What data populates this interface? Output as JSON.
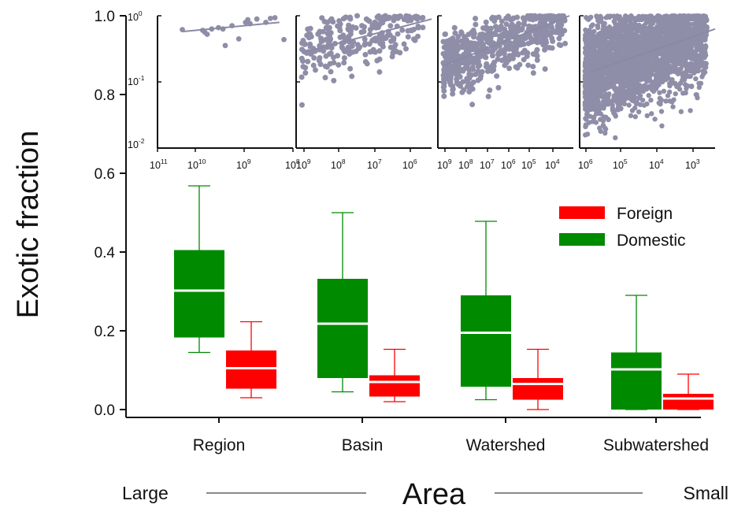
{
  "chart_data": [
    {
      "type": "box",
      "ylabel": "Exotic fraction",
      "xlabel": "Area",
      "x_scale_left_label": "Large",
      "x_scale_right_label": "Small",
      "ylim": [
        0,
        1.0
      ],
      "yticks": [
        "0.0",
        "0.2",
        "0.4",
        "0.6",
        "0.8",
        "1.0"
      ],
      "categories": [
        "Region",
        "Basin",
        "Watershed",
        "Subwatershed"
      ],
      "legend": {
        "placement": "right",
        "entries": [
          "Foreign",
          "Domestic"
        ]
      },
      "series": [
        {
          "name": "Domestic",
          "color": "#008a00",
          "boxes": [
            {
              "whisker_low": 0.145,
              "q1": 0.183,
              "median": 0.302,
              "q3": 0.405,
              "whisker_high": 0.568
            },
            {
              "whisker_low": 0.045,
              "q1": 0.08,
              "median": 0.218,
              "q3": 0.332,
              "whisker_high": 0.5
            },
            {
              "whisker_low": 0.025,
              "q1": 0.058,
              "median": 0.195,
              "q3": 0.29,
              "whisker_high": 0.478
            },
            {
              "whisker_low": 0.0,
              "q1": 0.0,
              "median": 0.102,
              "q3": 0.145,
              "whisker_high": 0.29
            }
          ]
        },
        {
          "name": "Foreign",
          "color": "#ff0000",
          "boxes": [
            {
              "whisker_low": 0.03,
              "q1": 0.053,
              "median": 0.105,
              "q3": 0.15,
              "whisker_high": 0.223
            },
            {
              "whisker_low": 0.02,
              "q1": 0.033,
              "median": 0.07,
              "q3": 0.087,
              "whisker_high": 0.153
            },
            {
              "whisker_low": 0.0,
              "q1": 0.025,
              "median": 0.065,
              "q3": 0.08,
              "whisker_high": 0.153
            },
            {
              "whisker_low": 0.0,
              "q1": 0.0,
              "median": 0.028,
              "q3": 0.04,
              "whisker_high": 0.09
            }
          ]
        }
      ]
    },
    {
      "type": "scatter",
      "panel": "Region",
      "x_scale": "log, reversed",
      "y_scale": "log",
      "xticks": [
        {
          "base": "10",
          "exp": "11"
        },
        {
          "base": "10",
          "exp": "10"
        },
        {
          "base": "10",
          "exp": "9"
        },
        {
          "base": "10",
          "exp": "8"
        }
      ],
      "yticks": [
        {
          "base": "10",
          "exp": "0"
        },
        {
          "base": "10",
          "exp": "-1"
        },
        {
          "base": "10",
          "exp": "-2"
        }
      ],
      "trend": {
        "from": [
          10.45,
          -0.24
        ],
        "to": [
          8.3,
          -0.1
        ]
      },
      "points_log10": [
        [
          10.45,
          -0.21
        ],
        [
          10.0,
          -0.22
        ],
        [
          9.9,
          -0.28
        ],
        [
          9.8,
          -0.2
        ],
        [
          9.65,
          -0.18
        ],
        [
          9.5,
          -0.45
        ],
        [
          9.35,
          -0.15
        ],
        [
          9.2,
          -0.35
        ],
        [
          9.05,
          -0.1
        ],
        [
          8.95,
          -0.12
        ],
        [
          8.8,
          -0.05
        ],
        [
          8.6,
          -0.1
        ],
        [
          8.5,
          -0.04
        ],
        [
          8.4,
          -0.03
        ],
        [
          8.2,
          -0.36
        ],
        [
          9.95,
          -0.25
        ],
        [
          9.55,
          -0.2
        ],
        [
          9.0,
          -0.06
        ]
      ]
    },
    {
      "type": "scatter",
      "panel": "Basin",
      "x_scale": "log, reversed",
      "y_scale": "log",
      "xticks": [
        {
          "base": "10",
          "exp": "9"
        },
        {
          "base": "10",
          "exp": "8"
        },
        {
          "base": "10",
          "exp": "7"
        },
        {
          "base": "10",
          "exp": "6"
        }
      ],
      "trend": {
        "from": [
          8.9,
          -0.55
        ],
        "to": [
          5.5,
          -0.05
        ]
      },
      "n_points": 250,
      "trend_center_log10_y_at_x": "linear",
      "spread_log10": 0.35
    },
    {
      "type": "scatter",
      "panel": "Watershed",
      "x_scale": "log, reversed",
      "y_scale": "log",
      "xticks": [
        {
          "base": "10",
          "exp": "9"
        },
        {
          "base": "10",
          "exp": "8"
        },
        {
          "base": "10",
          "exp": "7"
        },
        {
          "base": "10",
          "exp": "6"
        },
        {
          "base": "10",
          "exp": "5"
        },
        {
          "base": "10",
          "exp": "4"
        }
      ],
      "trend": {
        "from": [
          8.9,
          -0.75
        ],
        "to": [
          4.0,
          0.0
        ]
      },
      "n_points": 650,
      "spread_log10": 0.35
    },
    {
      "type": "scatter",
      "panel": "Subwatershed",
      "x_scale": "log, reversed",
      "y_scale": "log",
      "xticks": [
        {
          "base": "10",
          "exp": "6"
        },
        {
          "base": "10",
          "exp": "5"
        },
        {
          "base": "10",
          "exp": "4"
        },
        {
          "base": "10",
          "exp": "3"
        }
      ],
      "trend": {
        "from": [
          5.9,
          -0.85
        ],
        "to": [
          2.5,
          -0.2
        ]
      },
      "n_points": 2600,
      "spread_log10": 0.55
    }
  ]
}
